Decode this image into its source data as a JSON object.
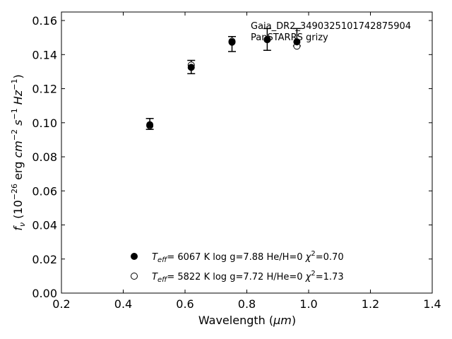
{
  "chart_data": {
    "type": "scatter",
    "xlabel_prefix": "Wavelength (",
    "xlabel_unit": "μm",
    "xlabel_suffix": ")",
    "ylabel": "f_ν (10^-26 erg cm^-2 s^-1 Hz^-1)",
    "xlim": [
      0.2,
      1.4
    ],
    "ylim": [
      0.0,
      0.165
    ],
    "xticks": [
      0.2,
      0.4,
      0.6,
      0.8,
      1.0,
      1.2,
      1.4
    ],
    "yticks": [
      0.0,
      0.02,
      0.04,
      0.06,
      0.08,
      0.1,
      0.12,
      0.14,
      0.16
    ],
    "xtick_labels": [
      "0.2",
      "0.4",
      "0.6",
      "0.8",
      "1.0",
      "1.2",
      "1.4"
    ],
    "ytick_labels": [
      "0.00",
      "0.02",
      "0.04",
      "0.06",
      "0.08",
      "0.10",
      "0.12",
      "0.14",
      "0.16"
    ],
    "annotations": [
      "Gaia_DR2_3490325101742875904",
      "PanSTARRS grizy"
    ],
    "observed": {
      "x": [
        0.486,
        0.62,
        0.752,
        0.866,
        0.962
      ],
      "y": [
        0.0993,
        0.1327,
        0.1462,
        0.1489,
        0.1502
      ],
      "yerr": [
        0.0032,
        0.0039,
        0.0044,
        0.0064,
        0.0051
      ]
    },
    "series": [
      {
        "marker": "filled-circle",
        "x": [
          0.486,
          0.62,
          0.752,
          0.866,
          0.962
        ],
        "y": [
          0.0988,
          0.1325,
          0.1473,
          0.1488,
          0.1475
        ]
      },
      {
        "marker": "open-circle",
        "x": [
          0.486,
          0.62,
          0.752,
          0.866,
          0.962
        ],
        "y": [
          0.0983,
          0.1338,
          0.1478,
          0.1488,
          0.145
        ]
      }
    ],
    "legend": [
      {
        "marker": "filled-circle",
        "teff": "6067",
        "logg": "7.88",
        "comp_label": "He/H=0",
        "chi2": "0.70"
      },
      {
        "marker": "open-circle",
        "teff": "5822",
        "logg": "7.72",
        "comp_label": "H/He=0",
        "chi2": "1.73"
      }
    ],
    "grid": false,
    "legend_position": "lower-center"
  }
}
